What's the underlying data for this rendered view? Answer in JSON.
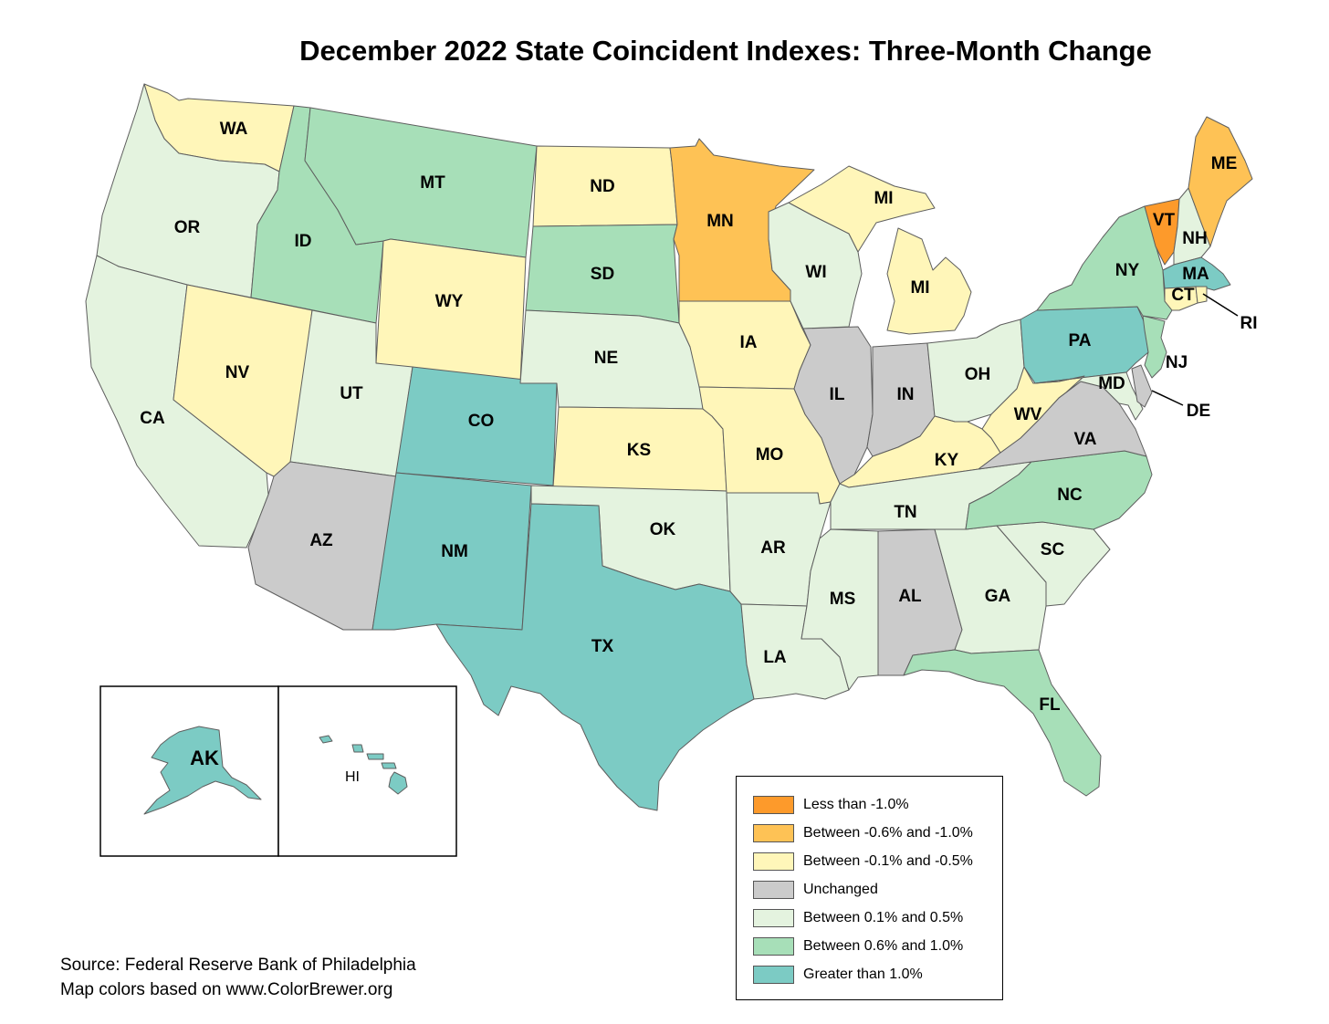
{
  "title": "December 2022 State Coincident Indexes: Three-Month Change",
  "colors": {
    "lt_neg_1": "#fd9a2b",
    "neg_06_10": "#fec255",
    "neg_01_05": "#fff6b9",
    "unchanged": "#cbcbcb",
    "pos_01_05": "#e4f3df",
    "pos_06_10": "#a7dfb8",
    "gt_1": "#7ccbc4"
  },
  "legend": [
    {
      "key": "lt_neg_1",
      "label": "Less than -1.0%"
    },
    {
      "key": "neg_06_10",
      "label": "Between -0.6% and -1.0%"
    },
    {
      "key": "neg_01_05",
      "label": "Between -0.1% and -0.5%"
    },
    {
      "key": "unchanged",
      "label": "Unchanged"
    },
    {
      "key": "pos_01_05",
      "label": "Between 0.1% and 0.5%"
    },
    {
      "key": "pos_06_10",
      "label": "Between 0.6% and 1.0%"
    },
    {
      "key": "gt_1",
      "label": "Greater than 1.0%"
    }
  ],
  "states": {
    "WA": "neg_01_05",
    "OR": "pos_01_05",
    "CA": "pos_01_05",
    "ID": "pos_06_10",
    "NV": "neg_01_05",
    "MT": "pos_06_10",
    "WY": "neg_01_05",
    "UT": "pos_01_05",
    "AZ": "unchanged",
    "CO": "gt_1",
    "NM": "gt_1",
    "ND": "neg_01_05",
    "SD": "pos_06_10",
    "NE": "pos_01_05",
    "KS": "neg_01_05",
    "OK": "pos_01_05",
    "TX": "gt_1",
    "MN": "neg_06_10",
    "IA": "neg_01_05",
    "MO": "neg_01_05",
    "AR": "pos_01_05",
    "LA": "pos_01_05",
    "WI": "pos_01_05",
    "IL": "unchanged",
    "MI": "neg_01_05",
    "IN": "unchanged",
    "OH": "pos_01_05",
    "KY": "neg_01_05",
    "TN": "pos_01_05",
    "MS": "pos_01_05",
    "AL": "unchanged",
    "GA": "pos_01_05",
    "FL": "pos_06_10",
    "SC": "pos_01_05",
    "NC": "pos_06_10",
    "VA": "unchanged",
    "WV": "neg_01_05",
    "PA": "gt_1",
    "NY": "pos_06_10",
    "NJ": "pos_06_10",
    "DE": "unchanged",
    "MD": "pos_01_05",
    "VT": "lt_neg_1",
    "NH": "pos_01_05",
    "ME": "neg_06_10",
    "MA": "gt_1",
    "CT": "neg_01_05",
    "RI": "neg_01_05",
    "AK": "gt_1",
    "HI": "gt_1"
  },
  "state_labels": {
    "WA": "WA",
    "OR": "OR",
    "CA": "CA",
    "ID": "ID",
    "NV": "NV",
    "MT": "MT",
    "WY": "WY",
    "UT": "UT",
    "AZ": "AZ",
    "CO": "CO",
    "NM": "NM",
    "ND": "ND",
    "SD": "SD",
    "NE": "NE",
    "KS": "KS",
    "OK": "OK",
    "TX": "TX",
    "MN": "MN",
    "IA": "IA",
    "MO": "MO",
    "AR": "AR",
    "LA": "LA",
    "WI": "WI",
    "IL": "IL",
    "MI": "MI",
    "IN": "IN",
    "OH": "OH",
    "KY": "KY",
    "TN": "TN",
    "MS": "MS",
    "AL": "AL",
    "GA": "GA",
    "FL": "FL",
    "SC": "SC",
    "NC": "NC",
    "VA": "VA",
    "WV": "WV",
    "PA": "PA",
    "NY": "NY",
    "NJ": "NJ",
    "DE": "DE",
    "MD": "MD",
    "VT": "VT",
    "NH": "NH",
    "ME": "ME",
    "MA": "MA",
    "CT": "CT",
    "RI": "RI",
    "AK": "AK",
    "HI": "HI"
  },
  "source_line1": "Source: Federal Reserve Bank of Philadelphia",
  "source_line2": "Map colors based on www.ColorBrewer.org"
}
